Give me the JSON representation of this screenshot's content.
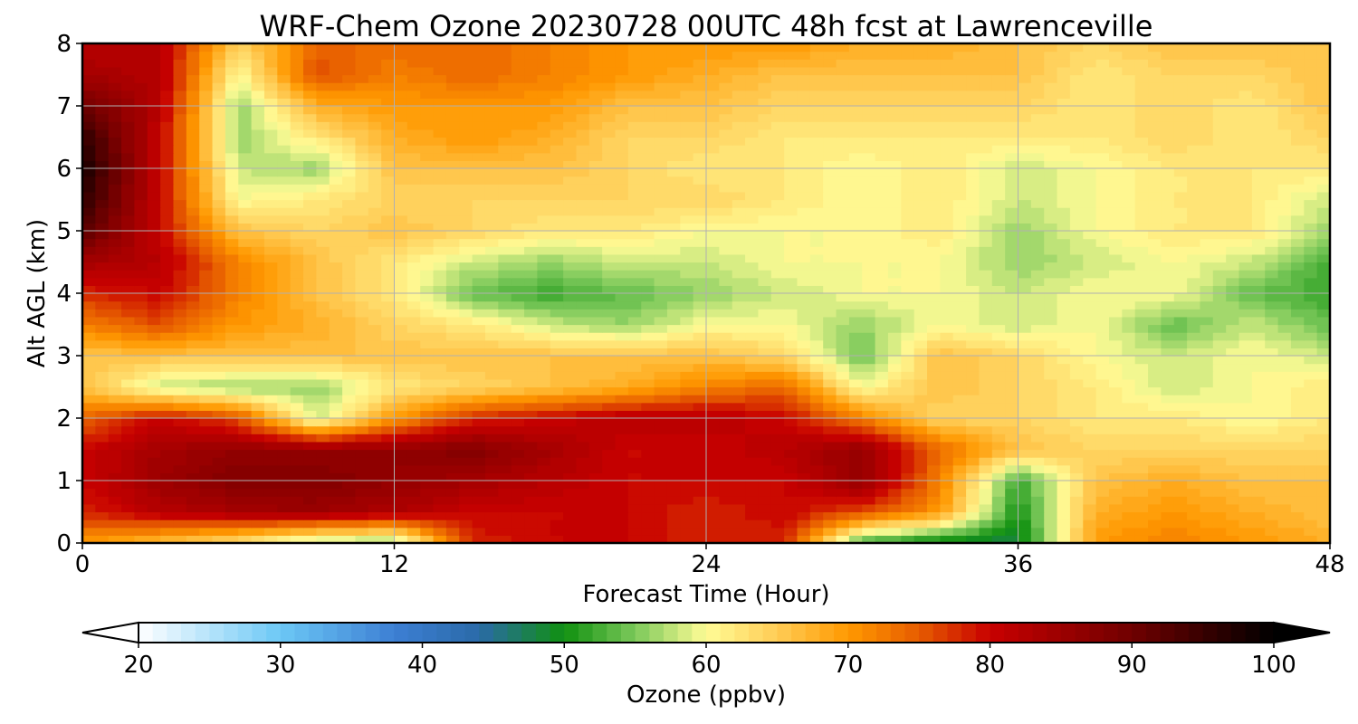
{
  "chart_data": {
    "type": "heatmap",
    "title": "WRF-Chem Ozone  20230728 00UTC 48h fcst at Lawrenceville",
    "xlabel": "Forecast Time (Hour)",
    "ylabel": "Alt AGL (km)",
    "xlim": [
      0,
      48
    ],
    "ylim": [
      0,
      8
    ],
    "x_ticks": [
      0,
      12,
      24,
      36,
      48
    ],
    "y_ticks": [
      0,
      1,
      2,
      3,
      4,
      5,
      6,
      7,
      8
    ],
    "x_tick_labels": [
      "0",
      "12",
      "24",
      "36",
      "48"
    ],
    "y_tick_labels": [
      "0",
      "1",
      "2",
      "3",
      "4",
      "5",
      "6",
      "7",
      "8"
    ],
    "grid": true,
    "x": [
      0,
      3,
      6,
      9,
      12,
      15,
      18,
      21,
      24,
      27,
      30,
      33,
      36,
      39,
      42,
      45,
      48
    ],
    "y": [
      0,
      0.5,
      1,
      1.5,
      2,
      2.5,
      3,
      3.5,
      4,
      4.5,
      5,
      5.5,
      6,
      6.5,
      7,
      7.5,
      8
    ],
    "z_ppbv": [
      [
        70,
        66,
        62,
        56,
        55,
        78,
        80,
        80,
        78,
        78,
        52,
        48,
        48,
        70,
        72,
        70,
        68
      ],
      [
        78,
        82,
        84,
        85,
        83,
        80,
        80,
        80,
        78,
        80,
        76,
        70,
        50,
        68,
        70,
        68,
        66
      ],
      [
        80,
        85,
        88,
        88,
        86,
        84,
        82,
        80,
        80,
        80,
        86,
        72,
        52,
        66,
        68,
        66,
        66
      ],
      [
        80,
        84,
        86,
        86,
        86,
        88,
        84,
        80,
        80,
        82,
        86,
        74,
        66,
        64,
        64,
        64,
        64
      ],
      [
        74,
        80,
        76,
        58,
        70,
        78,
        80,
        82,
        82,
        80,
        72,
        64,
        64,
        62,
        62,
        60,
        62
      ],
      [
        66,
        58,
        56,
        56,
        62,
        64,
        66,
        68,
        72,
        74,
        60,
        66,
        64,
        62,
        58,
        60,
        62
      ],
      [
        66,
        66,
        66,
        66,
        66,
        66,
        66,
        66,
        66,
        64,
        54,
        66,
        64,
        60,
        58,
        60,
        58
      ],
      [
        72,
        76,
        70,
        68,
        64,
        62,
        58,
        56,
        60,
        60,
        56,
        60,
        58,
        60,
        54,
        58,
        54
      ],
      [
        78,
        80,
        72,
        66,
        62,
        54,
        52,
        54,
        56,
        58,
        60,
        60,
        58,
        60,
        60,
        54,
        52
      ],
      [
        84,
        82,
        72,
        66,
        62,
        58,
        56,
        58,
        58,
        60,
        60,
        60,
        56,
        58,
        60,
        58,
        52
      ],
      [
        92,
        80,
        66,
        64,
        66,
        64,
        62,
        62,
        60,
        60,
        60,
        62,
        56,
        60,
        62,
        62,
        56
      ],
      [
        96,
        80,
        60,
        62,
        64,
        64,
        64,
        64,
        64,
        62,
        60,
        62,
        58,
        60,
        62,
        62,
        58
      ],
      [
        98,
        80,
        58,
        56,
        66,
        66,
        66,
        64,
        62,
        62,
        60,
        62,
        58,
        60,
        62,
        62,
        62
      ],
      [
        96,
        80,
        56,
        62,
        68,
        70,
        68,
        64,
        64,
        62,
        62,
        62,
        62,
        62,
        64,
        62,
        64
      ],
      [
        90,
        82,
        56,
        68,
        70,
        70,
        70,
        66,
        66,
        64,
        64,
        64,
        64,
        62,
        64,
        62,
        66
      ],
      [
        84,
        82,
        60,
        76,
        72,
        74,
        72,
        70,
        68,
        66,
        66,
        66,
        66,
        62,
        64,
        64,
        66
      ],
      [
        82,
        82,
        64,
        74,
        74,
        74,
        72,
        70,
        70,
        70,
        68,
        68,
        66,
        64,
        66,
        66,
        66
      ]
    ],
    "colorbar": {
      "label": "Ozone  (ppbv)",
      "min": 20,
      "max": 100,
      "step": 1,
      "extend": "both",
      "placement": "bottom",
      "ticks": [
        20,
        30,
        40,
        50,
        60,
        70,
        80,
        90,
        100
      ],
      "tick_labels": [
        "20",
        "30",
        "40",
        "50",
        "60",
        "70",
        "80",
        "90",
        "100"
      ],
      "color_stops": [
        {
          "v": 20,
          "c": "#ffffff"
        },
        {
          "v": 30,
          "c": "#6cc8f5"
        },
        {
          "v": 38,
          "c": "#3d7fd4"
        },
        {
          "v": 44,
          "c": "#2a6aa8"
        },
        {
          "v": 50,
          "c": "#109010"
        },
        {
          "v": 55,
          "c": "#7cc95a"
        },
        {
          "v": 60,
          "c": "#fffc96"
        },
        {
          "v": 65,
          "c": "#ffcc55"
        },
        {
          "v": 70,
          "c": "#ff9900"
        },
        {
          "v": 75,
          "c": "#e65c00"
        },
        {
          "v": 80,
          "c": "#c80000"
        },
        {
          "v": 90,
          "c": "#700000"
        },
        {
          "v": 100,
          "c": "#000000"
        }
      ]
    }
  }
}
